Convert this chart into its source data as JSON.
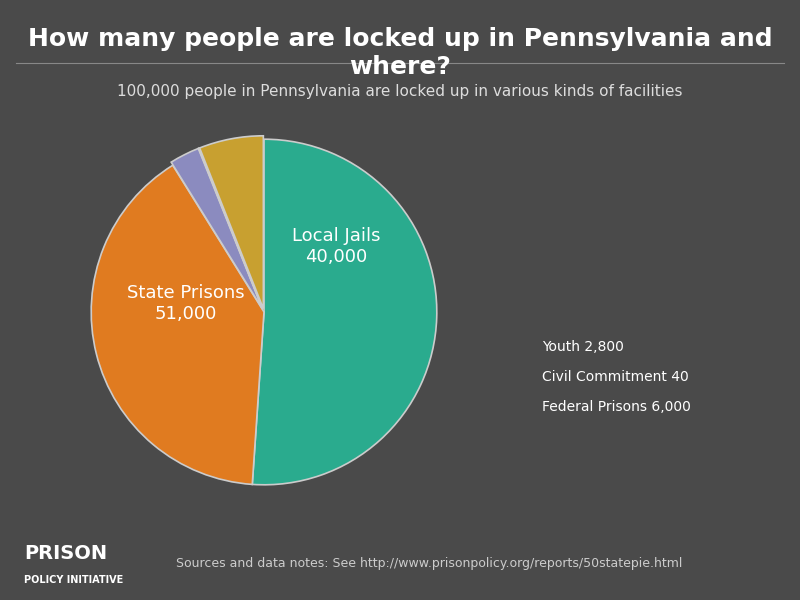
{
  "title": "How many people are locked up in Pennsylvania and where?",
  "subtitle": "100,000 people in Pennsylvania are locked up in various kinds of facilities",
  "slices": [
    {
      "label": "State Prisons",
      "value": 51000,
      "color": "#2aab8e"
    },
    {
      "label": "Local Jails",
      "value": 40000,
      "color": "#e07b20"
    },
    {
      "label": "Youth",
      "value": 2800,
      "color": "#8b8bbf"
    },
    {
      "label": "Civil Commitment",
      "value": 40,
      "color": "#b8860b"
    },
    {
      "label": "Federal Prisons",
      "value": 6000,
      "color": "#c8a030"
    }
  ],
  "background_color": "#4a4a4a",
  "title_color": "#ffffff",
  "subtitle_color": "#dddddd",
  "label_color": "#ffffff",
  "pie_edge_color": "#cccccc",
  "source_text": "Sources and data notes: See http://www.prisonpolicy.org/reports/50statepie.html",
  "footer_logo_text1": "PRISON",
  "footer_logo_text2": "POLICY INITIATIVE"
}
